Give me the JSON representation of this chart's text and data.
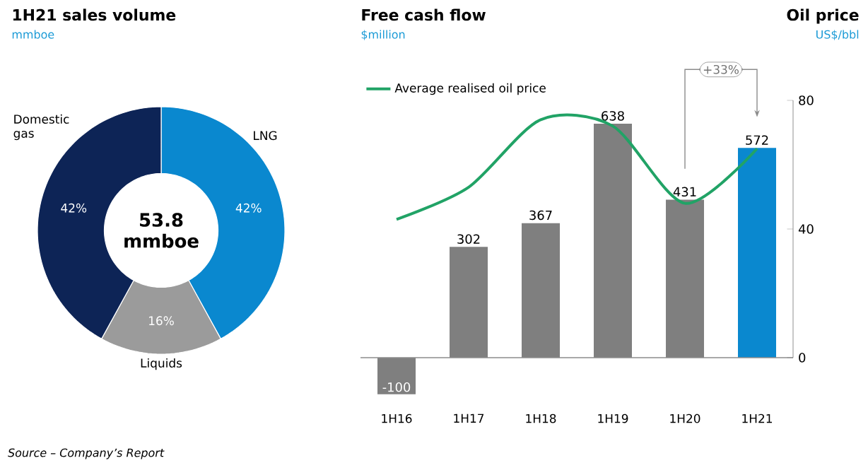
{
  "chart_data": [
    {
      "type": "donut",
      "title": "1H21 sales volume",
      "subtitle": "mmboe",
      "categories": [
        "LNG",
        "Liquids",
        "Domestic gas"
      ],
      "values": [
        42,
        16,
        42
      ],
      "colors": [
        "#0a88cf",
        "#9b9b9b",
        "#0d2456"
      ],
      "value_labels": [
        "42%",
        "16%",
        "42%"
      ],
      "annotations": [
        "53.8 mmboe",
        "Source – Company’s Report"
      ]
    },
    {
      "type": "bar",
      "title": "Free cash flow",
      "subtitle": "$million",
      "y2label": "Oil price",
      "categories": [
        "1H16",
        "1H17",
        "1H18",
        "1H19",
        "1H20",
        "1H21"
      ],
      "series": [
        {
          "type": "bar",
          "colors": [
            "#7f7f7f",
            "#7f7f7f",
            "#7f7f7f",
            "#7f7f7f",
            "#7f7f7f",
            "#0a88cf"
          ],
          "values": [
            -100,
            302,
            367,
            638,
            431,
            572
          ],
          "value_labels": [
            "-100",
            "302",
            "367",
            "638",
            "431",
            "572"
          ]
        },
        {
          "name": "Average realised oil price",
          "type": "line",
          "axis": "y2",
          "color": "#21a366",
          "values": [
            43,
            53,
            74,
            72,
            48,
            65
          ]
        }
      ],
      "y2lim": [
        0,
        80
      ],
      "y2ticks": [
        0,
        40,
        80
      ],
      "legend": "top left",
      "annotations": [
        "+33%",
        "US$/bbl"
      ]
    }
  ]
}
